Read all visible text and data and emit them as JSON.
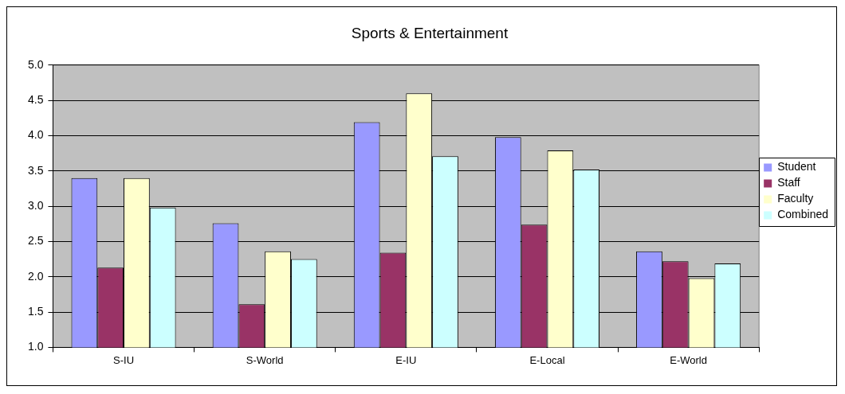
{
  "chart_data": {
    "type": "bar",
    "title": "Sports & Entertainment",
    "categories": [
      "S-IU",
      "S-World",
      "E-IU",
      "E-Local",
      "E-World"
    ],
    "series": [
      {
        "name": "Student",
        "color": "#9999ff",
        "values": [
          3.4,
          2.76,
          4.19,
          3.98,
          2.36
        ]
      },
      {
        "name": "Staff",
        "color": "#993366",
        "values": [
          2.13,
          1.61,
          2.34,
          2.74,
          2.22
        ]
      },
      {
        "name": "Faculty",
        "color": "#ffffcc",
        "values": [
          3.4,
          2.36,
          4.6,
          3.79,
          1.98
        ]
      },
      {
        "name": "Combined",
        "color": "#ccffff",
        "values": [
          2.98,
          2.25,
          3.71,
          3.52,
          2.19
        ]
      }
    ],
    "ylim": [
      1,
      5
    ],
    "yticks": [
      {
        "value": 1,
        "label": "1.0"
      },
      {
        "value": 1.5,
        "label": "1.5"
      },
      {
        "value": 2,
        "label": "2.0"
      },
      {
        "value": 2.5,
        "label": "2.5"
      },
      {
        "value": 3,
        "label": "3.0"
      },
      {
        "value": 3.5,
        "label": "3.5"
      },
      {
        "value": 4,
        "label": "4.0"
      },
      {
        "value": 4.5,
        "label": "4.5"
      },
      {
        "value": 5,
        "label": "5.0"
      }
    ],
    "grid": "y",
    "legend": "right"
  }
}
